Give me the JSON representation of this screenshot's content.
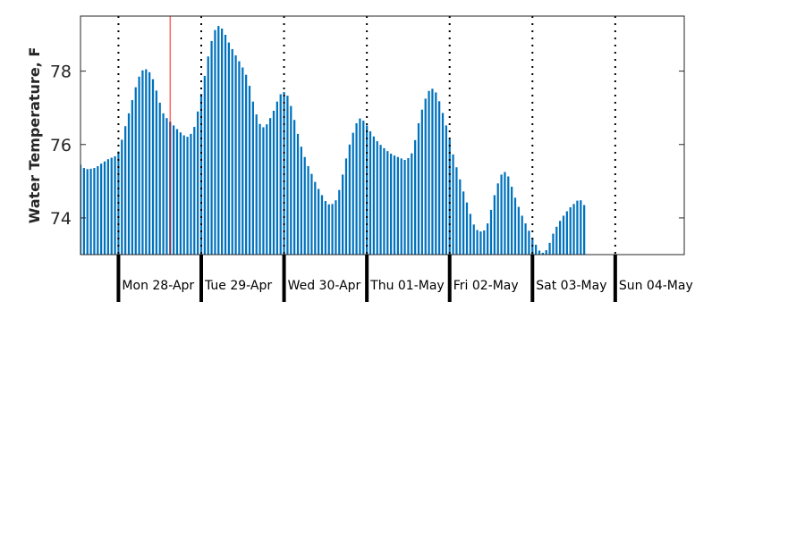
{
  "chart_data": {
    "type": "bar",
    "title": "",
    "xlabel": "",
    "ylabel": "Water Temperature, F",
    "ylim": [
      73.0,
      79.5
    ],
    "yticks": [
      74,
      76,
      78
    ],
    "ytick_labels": [
      "74",
      "76",
      "78"
    ],
    "grid": false,
    "legend": "none",
    "bar_color": "#0072bd",
    "marker_line_color": "#ff0000",
    "x_start": "2014-04-27 13:00",
    "x_end": "2014-05-04 20:00",
    "marker_time": "2014-04-28 15:00",
    "day_boundaries": [
      "2014-04-28",
      "2014-04-29",
      "2014-04-30",
      "2014-05-01",
      "2014-05-02",
      "2014-05-03",
      "2014-05-04"
    ],
    "day_labels": [
      "Mon 28-Apr",
      "Tue 29-Apr",
      "Wed 30-Apr",
      "Thu 01-May",
      "Fri 02-May",
      "Sat 03-May",
      "Sun 04-May"
    ],
    "hourly_values": [
      75.45,
      75.36,
      75.33,
      75.34,
      75.36,
      75.41,
      75.48,
      75.54,
      75.6,
      75.64,
      75.68,
      75.81,
      76.13,
      76.5,
      76.85,
      77.21,
      77.56,
      77.85,
      78.02,
      78.05,
      77.97,
      77.78,
      77.47,
      77.14,
      76.85,
      76.72,
      76.62,
      76.52,
      76.42,
      76.33,
      76.25,
      76.21,
      76.29,
      76.48,
      76.9,
      77.38,
      77.87,
      78.4,
      78.82,
      79.12,
      79.23,
      79.16,
      78.99,
      78.78,
      78.6,
      78.43,
      78.27,
      78.1,
      77.9,
      77.6,
      77.17,
      76.82,
      76.56,
      76.47,
      76.55,
      76.72,
      76.92,
      77.17,
      77.37,
      77.43,
      77.33,
      77.05,
      76.67,
      76.29,
      75.94,
      75.66,
      75.41,
      75.2,
      74.98,
      74.79,
      74.62,
      74.46,
      74.37,
      74.38,
      74.48,
      74.76,
      75.18,
      75.62,
      76.0,
      76.32,
      76.58,
      76.71,
      76.65,
      76.52,
      76.36,
      76.22,
      76.09,
      75.99,
      75.9,
      75.82,
      75.75,
      75.7,
      75.66,
      75.62,
      75.58,
      75.63,
      75.76,
      76.12,
      76.58,
      76.95,
      77.25,
      77.46,
      77.52,
      77.42,
      77.18,
      76.86,
      76.52,
      76.14,
      75.73,
      75.38,
      75.05,
      74.72,
      74.42,
      74.11,
      73.82,
      73.67,
      73.63,
      73.66,
      73.85,
      74.22,
      74.62,
      74.94,
      75.18,
      75.25,
      75.13,
      74.85,
      74.55,
      74.3,
      74.06,
      73.85,
      73.65,
      73.44,
      73.27,
      73.11,
      73.05,
      73.12,
      73.32,
      73.57,
      73.76,
      73.92,
      74.06,
      74.18,
      74.29,
      74.38,
      74.47,
      74.48,
      74.35
    ]
  }
}
